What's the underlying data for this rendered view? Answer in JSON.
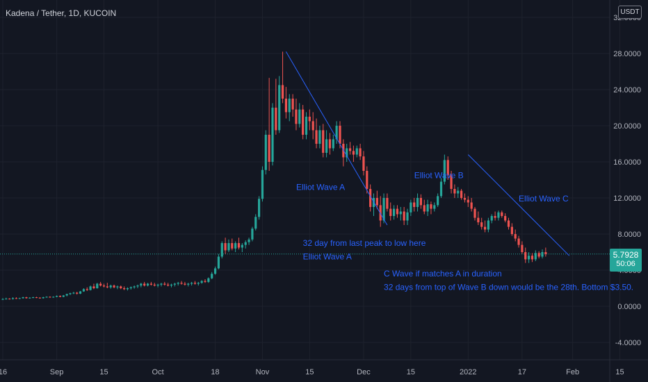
{
  "header": {
    "title": "Kadena / Tether, 1D, KUCOIN",
    "currency": "USDT"
  },
  "price_badge": {
    "price": "5.7928",
    "countdown": "50:06"
  },
  "colors": {
    "background": "#131722",
    "grid": "#1e222d",
    "up": "#26a69a",
    "down": "#ef5350",
    "annotation": "#2962ff",
    "text": "#b2b5be"
  },
  "chart_data": {
    "type": "candlestick",
    "title": "Kadena / Tether, 1D, KUCOIN",
    "ylim": [
      -6,
      32
    ],
    "y_ticks": [
      "-4.0000",
      "0.0000",
      "4.0000",
      "8.0000",
      "12.0000",
      "16.0000",
      "20.0000",
      "24.0000",
      "28.0000",
      "32.0000"
    ],
    "y_tick_values": [
      -4,
      0,
      4,
      8,
      12,
      16,
      20,
      24,
      28,
      32
    ],
    "x_ticks": [
      "16",
      "Sep",
      "15",
      "Oct",
      "18",
      "Nov",
      "15",
      "Dec",
      "15",
      "2022",
      "17",
      "Feb",
      "15"
    ],
    "x_tick_days": [
      0,
      16,
      30,
      46,
      63,
      77,
      91,
      107,
      121,
      138,
      154,
      169,
      183
    ],
    "last_price": 5.7928,
    "candles": [
      [
        0.75,
        0.9,
        0.7,
        0.8
      ],
      [
        0.8,
        0.95,
        0.75,
        0.85
      ],
      [
        0.85,
        0.9,
        0.75,
        0.8
      ],
      [
        0.8,
        1.0,
        0.75,
        0.9
      ],
      [
        0.9,
        1.0,
        0.8,
        0.85
      ],
      [
        0.85,
        0.95,
        0.8,
        0.9
      ],
      [
        0.9,
        1.05,
        0.85,
        1.0
      ],
      [
        1.0,
        1.05,
        0.85,
        0.9
      ],
      [
        0.9,
        1.0,
        0.85,
        0.95
      ],
      [
        0.95,
        1.05,
        0.9,
        1.0
      ],
      [
        1.0,
        1.05,
        0.9,
        0.95
      ],
      [
        0.95,
        1.0,
        0.85,
        0.9
      ],
      [
        0.9,
        1.05,
        0.85,
        1.0
      ],
      [
        1.0,
        1.1,
        0.95,
        1.05
      ],
      [
        1.05,
        1.1,
        0.95,
        1.0
      ],
      [
        1.0,
        1.1,
        0.95,
        1.05
      ],
      [
        1.05,
        1.2,
        1.0,
        1.15
      ],
      [
        1.15,
        1.2,
        1.0,
        1.05
      ],
      [
        1.05,
        1.25,
        1.0,
        1.2
      ],
      [
        1.2,
        1.4,
        1.1,
        1.35
      ],
      [
        1.35,
        1.5,
        1.25,
        1.45
      ],
      [
        1.45,
        1.6,
        1.35,
        1.5
      ],
      [
        1.5,
        1.6,
        1.3,
        1.4
      ],
      [
        1.4,
        1.7,
        1.35,
        1.65
      ],
      [
        1.65,
        2.0,
        1.6,
        1.9
      ],
      [
        1.9,
        2.1,
        1.7,
        1.8
      ],
      [
        1.8,
        2.3,
        1.75,
        2.2
      ],
      [
        2.2,
        2.5,
        1.9,
        2.0
      ],
      [
        2.0,
        2.6,
        1.95,
        2.5
      ],
      [
        2.5,
        2.7,
        2.2,
        2.3
      ],
      [
        2.3,
        2.5,
        2.1,
        2.2
      ],
      [
        2.2,
        2.6,
        2.0,
        2.1
      ],
      [
        2.1,
        2.4,
        1.95,
        2.3
      ],
      [
        2.3,
        2.4,
        2.0,
        2.1
      ],
      [
        2.1,
        2.3,
        1.9,
        2.2
      ],
      [
        2.2,
        2.3,
        1.9,
        2.0
      ],
      [
        2.0,
        2.2,
        1.8,
        1.9
      ],
      [
        1.9,
        2.1,
        1.75,
        2.0
      ],
      [
        2.0,
        2.2,
        1.85,
        2.1
      ],
      [
        2.1,
        2.3,
        1.95,
        2.2
      ],
      [
        2.2,
        2.4,
        2.0,
        2.3
      ],
      [
        2.3,
        2.6,
        2.1,
        2.5
      ],
      [
        2.5,
        2.7,
        2.2,
        2.3
      ],
      [
        2.3,
        2.6,
        2.2,
        2.5
      ],
      [
        2.5,
        2.7,
        2.3,
        2.4
      ],
      [
        2.4,
        2.6,
        2.2,
        2.3
      ],
      [
        2.3,
        2.5,
        2.1,
        2.4
      ],
      [
        2.4,
        2.6,
        2.2,
        2.5
      ],
      [
        2.5,
        2.7,
        2.3,
        2.4
      ],
      [
        2.4,
        2.6,
        2.2,
        2.3
      ],
      [
        2.3,
        2.5,
        2.1,
        2.4
      ],
      [
        2.4,
        2.6,
        2.2,
        2.5
      ],
      [
        2.5,
        2.7,
        2.3,
        2.6
      ],
      [
        2.6,
        2.8,
        2.4,
        2.5
      ],
      [
        2.5,
        2.7,
        2.3,
        2.4
      ],
      [
        2.4,
        2.6,
        2.2,
        2.5
      ],
      [
        2.5,
        2.7,
        2.3,
        2.6
      ],
      [
        2.6,
        2.8,
        2.4,
        2.5
      ],
      [
        2.5,
        2.7,
        2.3,
        2.6
      ],
      [
        2.6,
        2.9,
        2.5,
        2.8
      ],
      [
        2.8,
        3.0,
        2.6,
        2.7
      ],
      [
        2.7,
        3.2,
        2.6,
        3.1
      ],
      [
        3.1,
        3.8,
        3.0,
        3.6
      ],
      [
        3.6,
        4.4,
        3.5,
        4.2
      ],
      [
        4.2,
        5.8,
        4.1,
        5.5
      ],
      [
        5.5,
        7.2,
        5.3,
        7.0
      ],
      [
        7.0,
        7.6,
        5.8,
        6.2
      ],
      [
        6.2,
        7.4,
        6.0,
        7.0
      ],
      [
        7.0,
        7.5,
        6.2,
        6.4
      ],
      [
        6.4,
        7.2,
        6.0,
        7.0
      ],
      [
        7.0,
        7.6,
        6.3,
        6.5
      ],
      [
        6.5,
        7.0,
        6.0,
        6.8
      ],
      [
        6.8,
        7.3,
        6.4,
        7.1
      ],
      [
        7.1,
        7.6,
        6.8,
        7.4
      ],
      [
        7.4,
        8.8,
        7.2,
        8.6
      ],
      [
        8.6,
        10.2,
        8.4,
        9.9
      ],
      [
        9.9,
        12.2,
        9.6,
        11.9
      ],
      [
        11.9,
        15.5,
        11.6,
        15.1
      ],
      [
        15.1,
        19.5,
        14.6,
        19.0
      ],
      [
        19.0,
        25.3,
        15.0,
        16.0
      ],
      [
        16.0,
        22.5,
        15.6,
        22.0
      ],
      [
        22.0,
        25.2,
        19.0,
        19.5
      ],
      [
        19.5,
        25.5,
        19.2,
        24.5
      ],
      [
        24.5,
        28.2,
        22.5,
        23.0
      ],
      [
        23.0,
        24.3,
        20.8,
        21.5
      ],
      [
        21.5,
        23.5,
        20.5,
        23.0
      ],
      [
        23.0,
        23.5,
        21.0,
        21.8
      ],
      [
        21.8,
        23.0,
        19.5,
        20.2
      ],
      [
        20.2,
        22.5,
        19.8,
        21.8
      ],
      [
        21.8,
        22.3,
        18.5,
        19.0
      ],
      [
        19.0,
        21.5,
        18.5,
        21.0
      ],
      [
        21.0,
        21.8,
        19.5,
        20.5
      ],
      [
        20.5,
        21.5,
        18.5,
        19.5
      ],
      [
        19.5,
        20.8,
        17.5,
        18.0
      ],
      [
        18.0,
        20.0,
        17.5,
        19.5
      ],
      [
        19.5,
        20.2,
        16.5,
        17.0
      ],
      [
        17.0,
        19.5,
        16.5,
        18.5
      ],
      [
        18.5,
        19.2,
        16.8,
        17.5
      ],
      [
        17.5,
        19.0,
        17.2,
        18.5
      ],
      [
        18.5,
        20.5,
        18.0,
        20.0
      ],
      [
        20.0,
        20.5,
        17.5,
        18.0
      ],
      [
        18.0,
        18.5,
        15.5,
        16.5
      ],
      [
        16.5,
        18.0,
        16.0,
        17.5
      ],
      [
        17.5,
        18.2,
        16.8,
        17.2
      ],
      [
        17.2,
        17.8,
        16.0,
        16.8
      ],
      [
        16.8,
        17.8,
        16.5,
        17.5
      ],
      [
        17.5,
        18.0,
        16.2,
        16.6
      ],
      [
        16.6,
        17.2,
        14.5,
        15.0
      ],
      [
        15.0,
        15.5,
        12.5,
        13.0
      ],
      [
        13.0,
        13.5,
        10.5,
        11.0
      ],
      [
        11.0,
        12.5,
        10.0,
        12.0
      ],
      [
        12.0,
        12.8,
        10.8,
        11.2
      ],
      [
        11.2,
        12.2,
        8.8,
        9.5
      ],
      [
        9.5,
        12.5,
        9.2,
        12.0
      ],
      [
        12.0,
        12.5,
        10.5,
        10.8
      ],
      [
        10.8,
        11.5,
        9.5,
        10.0
      ],
      [
        10.0,
        11.2,
        9.6,
        10.8
      ],
      [
        10.8,
        11.2,
        9.8,
        10.2
      ],
      [
        10.2,
        11.0,
        9.5,
        10.5
      ],
      [
        10.5,
        11.0,
        9.0,
        9.5
      ],
      [
        9.5,
        10.8,
        9.0,
        10.4
      ],
      [
        10.4,
        11.8,
        10.0,
        11.5
      ],
      [
        11.5,
        12.0,
        10.5,
        11.0
      ],
      [
        11.0,
        12.5,
        10.5,
        12.0
      ],
      [
        12.0,
        12.4,
        10.8,
        11.2
      ],
      [
        11.2,
        11.8,
        10.2,
        10.5
      ],
      [
        10.5,
        11.8,
        10.0,
        11.3
      ],
      [
        11.3,
        11.6,
        10.2,
        10.8
      ],
      [
        10.8,
        11.5,
        10.5,
        11.2
      ],
      [
        11.2,
        12.5,
        11.0,
        12.2
      ],
      [
        12.2,
        14.2,
        12.0,
        13.8
      ],
      [
        13.8,
        16.8,
        13.5,
        16.2
      ],
      [
        16.2,
        16.6,
        14.0,
        14.5
      ],
      [
        14.5,
        15.0,
        12.5,
        13.0
      ],
      [
        13.0,
        13.5,
        12.0,
        12.5
      ],
      [
        12.5,
        13.2,
        12.0,
        12.8
      ],
      [
        12.8,
        13.0,
        11.8,
        12.0
      ],
      [
        12.0,
        12.5,
        11.5,
        11.8
      ],
      [
        11.8,
        12.2,
        11.0,
        11.5
      ],
      [
        11.5,
        12.0,
        10.5,
        10.8
      ],
      [
        10.8,
        11.0,
        9.5,
        9.8
      ],
      [
        9.8,
        10.5,
        9.0,
        9.3
      ],
      [
        9.3,
        9.8,
        8.5,
        8.8
      ],
      [
        8.8,
        9.5,
        8.2,
        8.5
      ],
      [
        8.5,
        9.8,
        8.2,
        9.5
      ],
      [
        9.5,
        10.2,
        9.2,
        10.0
      ],
      [
        10.0,
        10.5,
        9.5,
        9.8
      ],
      [
        9.8,
        10.6,
        9.5,
        10.4
      ],
      [
        10.4,
        10.6,
        9.8,
        10.0
      ],
      [
        10.0,
        10.3,
        9.3,
        9.5
      ],
      [
        9.5,
        9.8,
        8.5,
        8.8
      ],
      [
        8.8,
        9.2,
        7.8,
        8.0
      ],
      [
        8.0,
        8.5,
        7.2,
        7.5
      ],
      [
        7.5,
        7.8,
        6.5,
        6.8
      ],
      [
        6.8,
        7.2,
        5.8,
        6.0
      ],
      [
        6.0,
        6.5,
        4.8,
        5.2
      ],
      [
        5.2,
        6.0,
        4.8,
        5.6
      ],
      [
        5.6,
        5.9,
        4.9,
        5.2
      ],
      [
        5.2,
        6.2,
        5.0,
        5.9
      ],
      [
        5.9,
        6.1,
        5.3,
        5.5
      ],
      [
        5.5,
        6.3,
        5.3,
        6.0
      ],
      [
        6.0,
        6.5,
        5.5,
        5.79
      ]
    ],
    "annotations": {
      "lines": [
        {
          "from": [
            84,
            28.2
          ],
          "to": [
            114,
            9.0
          ]
        },
        {
          "from": [
            138,
            16.8
          ],
          "to": [
            168,
            5.6
          ]
        }
      ],
      "labels": [
        {
          "text": "Elliot Wave A",
          "day": 87,
          "value": 12.9
        },
        {
          "text": "Elliot Wave B",
          "day": 122,
          "value": 14.2
        },
        {
          "text": "Elliot Wave C",
          "day": 153,
          "value": 11.6
        },
        {
          "text": "32 day from last peak to low here",
          "day": 89,
          "value": 6.7
        },
        {
          "text": "Elliot Wave A",
          "day": 89,
          "value": 5.2
        },
        {
          "text": "C Wave if matches A in duration",
          "day": 113,
          "value": 3.3
        },
        {
          "text": "32 days from top of Wave B down would be the 28th. Bottom $3.50.",
          "day": 113,
          "value": 1.8
        }
      ]
    }
  }
}
